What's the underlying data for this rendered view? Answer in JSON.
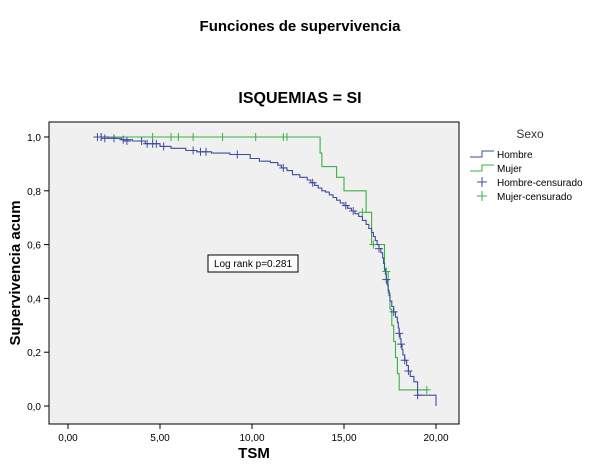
{
  "chart_data": {
    "type": "line",
    "title": "Funciones de supervivencia",
    "subtitle": "ISQUEMIAS = SI",
    "xlabel": "TSM",
    "ylabel": "Supervivencia acum",
    "xlim": [
      -1,
      21
    ],
    "ylim": [
      -0.1,
      1.05
    ],
    "x_ticks": [
      0,
      5,
      10,
      15,
      20
    ],
    "x_tick_labels": [
      "0,00",
      "5,00",
      "10,00",
      "15,00",
      "20,00"
    ],
    "y_ticks": [
      0,
      0.2,
      0.4,
      0.6,
      0.8,
      1.0
    ],
    "y_tick_labels": [
      "0,0",
      "0,2",
      "0,4",
      "0,6",
      "0,8",
      "1,0"
    ],
    "grid": false,
    "background": "#f0f0f0",
    "legend": {
      "title": "Sexo",
      "placement": "right",
      "entries": [
        {
          "label": "Hombre",
          "kind": "line",
          "series": 0
        },
        {
          "label": "Mujer",
          "kind": "line",
          "series": 1
        },
        {
          "label": "Hombre-censurado",
          "kind": "cross",
          "series": 0
        },
        {
          "label": "Mujer-censurado",
          "kind": "cross",
          "series": 1
        }
      ]
    },
    "annotation": "Log rank p=0.281",
    "series": [
      {
        "name": "Hombre",
        "color": "#3e4c9e",
        "steps": [
          [
            1.5,
            1.0
          ],
          [
            2.2,
            0.995
          ],
          [
            2.9,
            0.99
          ],
          [
            3.5,
            0.985
          ],
          [
            4.2,
            0.975
          ],
          [
            5.0,
            0.965
          ],
          [
            5.6,
            0.958
          ],
          [
            6.4,
            0.95
          ],
          [
            7.0,
            0.945
          ],
          [
            7.8,
            0.94
          ],
          [
            8.8,
            0.935
          ],
          [
            9.9,
            0.92
          ],
          [
            10.4,
            0.91
          ],
          [
            11.0,
            0.905
          ],
          [
            11.4,
            0.895
          ],
          [
            11.6,
            0.885
          ],
          [
            11.9,
            0.875
          ],
          [
            12.2,
            0.86
          ],
          [
            12.6,
            0.85
          ],
          [
            13.0,
            0.84
          ],
          [
            13.2,
            0.83
          ],
          [
            13.4,
            0.82
          ],
          [
            13.6,
            0.81
          ],
          [
            13.8,
            0.8
          ],
          [
            14.0,
            0.795
          ],
          [
            14.2,
            0.785
          ],
          [
            14.4,
            0.775
          ],
          [
            14.6,
            0.765
          ],
          [
            14.8,
            0.755
          ],
          [
            15.0,
            0.745
          ],
          [
            15.2,
            0.735
          ],
          [
            15.4,
            0.725
          ],
          [
            15.6,
            0.715
          ],
          [
            15.8,
            0.705
          ],
          [
            16.0,
            0.69
          ],
          [
            16.2,
            0.675
          ],
          [
            16.35,
            0.66
          ],
          [
            16.5,
            0.645
          ],
          [
            16.6,
            0.63
          ],
          [
            16.7,
            0.615
          ],
          [
            16.8,
            0.6
          ],
          [
            16.9,
            0.585
          ],
          [
            17.0,
            0.57
          ],
          [
            17.1,
            0.55
          ],
          [
            17.15,
            0.53
          ],
          [
            17.2,
            0.51
          ],
          [
            17.25,
            0.49
          ],
          [
            17.3,
            0.47
          ],
          [
            17.35,
            0.45
          ],
          [
            17.4,
            0.43
          ],
          [
            17.45,
            0.41
          ],
          [
            17.5,
            0.39
          ],
          [
            17.6,
            0.37
          ],
          [
            17.7,
            0.35
          ],
          [
            17.8,
            0.33
          ],
          [
            17.9,
            0.31
          ],
          [
            17.95,
            0.29
          ],
          [
            18.0,
            0.27
          ],
          [
            18.05,
            0.25
          ],
          [
            18.1,
            0.23
          ],
          [
            18.15,
            0.21
          ],
          [
            18.2,
            0.19
          ],
          [
            18.3,
            0.17
          ],
          [
            18.4,
            0.15
          ],
          [
            18.5,
            0.13
          ],
          [
            18.6,
            0.11
          ],
          [
            18.8,
            0.09
          ],
          [
            19.0,
            0.04
          ],
          [
            20.0,
            0.04
          ],
          [
            20.0,
            0.0
          ]
        ],
        "censored": [
          [
            1.6,
            1.0
          ],
          [
            1.8,
            1.0
          ],
          [
            2.0,
            0.995
          ],
          [
            2.5,
            0.995
          ],
          [
            3.0,
            0.99
          ],
          [
            3.2,
            0.985
          ],
          [
            4.0,
            0.985
          ],
          [
            4.3,
            0.975
          ],
          [
            4.6,
            0.975
          ],
          [
            4.8,
            0.975
          ],
          [
            5.2,
            0.965
          ],
          [
            6.8,
            0.95
          ],
          [
            7.2,
            0.945
          ],
          [
            7.5,
            0.945
          ],
          [
            9.2,
            0.935
          ],
          [
            11.7,
            0.885
          ],
          [
            13.3,
            0.83
          ],
          [
            15.1,
            0.745
          ],
          [
            15.5,
            0.725
          ],
          [
            16.9,
            0.585
          ],
          [
            17.3,
            0.47
          ],
          [
            17.7,
            0.35
          ],
          [
            18.0,
            0.27
          ],
          [
            18.1,
            0.23
          ],
          [
            18.3,
            0.17
          ],
          [
            18.5,
            0.13
          ],
          [
            19.0,
            0.04
          ]
        ]
      },
      {
        "name": "Mujer",
        "color": "#3cb043",
        "steps": [
          [
            1.6,
            1.0
          ],
          [
            13.6,
            1.0
          ],
          [
            13.7,
            0.94
          ],
          [
            13.8,
            0.89
          ],
          [
            14.6,
            0.85
          ],
          [
            15.0,
            0.8
          ],
          [
            16.2,
            0.72
          ],
          [
            16.5,
            0.6
          ],
          [
            17.2,
            0.5
          ],
          [
            17.4,
            0.42
          ],
          [
            17.5,
            0.36
          ],
          [
            17.6,
            0.3
          ],
          [
            17.7,
            0.24
          ],
          [
            17.8,
            0.18
          ],
          [
            17.9,
            0.12
          ],
          [
            18.0,
            0.06
          ],
          [
            19.5,
            0.06
          ]
        ],
        "censored": [
          [
            1.8,
            1.0
          ],
          [
            4.6,
            1.0
          ],
          [
            5.6,
            1.0
          ],
          [
            6.0,
            1.0
          ],
          [
            6.8,
            1.0
          ],
          [
            8.4,
            1.0
          ],
          [
            10.2,
            1.0
          ],
          [
            11.7,
            1.0
          ],
          [
            11.9,
            1.0
          ],
          [
            16.0,
            0.72
          ],
          [
            16.6,
            0.6
          ],
          [
            17.3,
            0.5
          ],
          [
            19.5,
            0.06
          ]
        ]
      }
    ]
  }
}
